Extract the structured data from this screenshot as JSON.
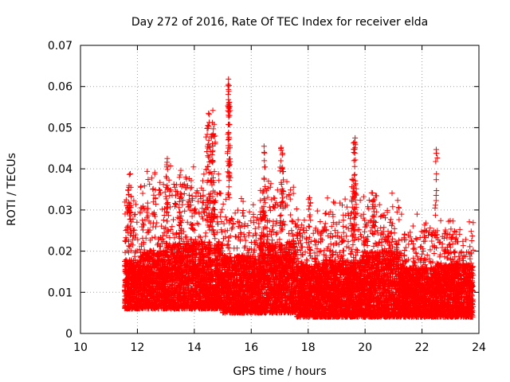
{
  "chart_data": {
    "type": "scatter",
    "title": "Day 272 of 2016, Rate Of TEC Index for receiver elda",
    "xlabel": "GPS time / hours",
    "ylabel": "ROTI / TECUs",
    "xlim": [
      10,
      24
    ],
    "ylim": [
      0,
      0.07
    ],
    "xticks": [
      "10",
      "12",
      "14",
      "16",
      "18",
      "20",
      "22",
      "24"
    ],
    "yticks": [
      "0",
      "0.01",
      "0.02",
      "0.03",
      "0.04",
      "0.05",
      "0.06",
      "0.07"
    ],
    "grid": true,
    "marker": "+",
    "color": "#ff0000",
    "x_data_range": [
      11.55,
      23.8
    ],
    "note_points": "Dense cloud of thousands of '+' markers; baseline mostly 0.006-0.02 TECU with spikes.",
    "series": [
      {
        "name": "ROTI",
        "outliers": [
          {
            "x": 15.2,
            "y": 0.0618
          },
          {
            "x": 15.22,
            "y": 0.0602
          },
          {
            "x": 15.2,
            "y": 0.0568
          },
          {
            "x": 15.23,
            "y": 0.0562
          },
          {
            "x": 14.65,
            "y": 0.0542
          },
          {
            "x": 14.5,
            "y": 0.0535
          },
          {
            "x": 14.45,
            "y": 0.0498
          },
          {
            "x": 14.7,
            "y": 0.0508
          },
          {
            "x": 14.6,
            "y": 0.0478
          },
          {
            "x": 14.55,
            "y": 0.0455
          },
          {
            "x": 19.65,
            "y": 0.0475
          },
          {
            "x": 19.63,
            "y": 0.0465
          },
          {
            "x": 19.6,
            "y": 0.0448
          },
          {
            "x": 22.5,
            "y": 0.0447
          },
          {
            "x": 16.45,
            "y": 0.0455
          },
          {
            "x": 17.05,
            "y": 0.0452
          },
          {
            "x": 17.1,
            "y": 0.0438
          },
          {
            "x": 13.05,
            "y": 0.0425
          },
          {
            "x": 11.75,
            "y": 0.0388
          },
          {
            "x": 13.5,
            "y": 0.0385
          },
          {
            "x": 19.55,
            "y": 0.0375
          },
          {
            "x": 13.9,
            "y": 0.0355
          },
          {
            "x": 11.7,
            "y": 0.0355
          },
          {
            "x": 18.05,
            "y": 0.033
          },
          {
            "x": 20.3,
            "y": 0.0325
          }
        ],
        "clusters": [
          {
            "x_start": 11.55,
            "x_end": 12.1,
            "base_low": 0.006,
            "base_high": 0.018,
            "peak": 0.032
          },
          {
            "x_start": 12.1,
            "x_end": 13.0,
            "base_low": 0.006,
            "base_high": 0.02,
            "peak": 0.036
          },
          {
            "x_start": 13.0,
            "x_end": 14.0,
            "base_low": 0.006,
            "base_high": 0.022,
            "peak": 0.038
          },
          {
            "x_start": 14.0,
            "x_end": 15.0,
            "base_low": 0.006,
            "base_high": 0.022,
            "peak": 0.035
          },
          {
            "x_start": 15.0,
            "x_end": 16.3,
            "base_low": 0.005,
            "base_high": 0.019,
            "peak": 0.03
          },
          {
            "x_start": 16.3,
            "x_end": 17.6,
            "base_low": 0.005,
            "base_high": 0.022,
            "peak": 0.034
          },
          {
            "x_start": 17.6,
            "x_end": 18.6,
            "base_low": 0.004,
            "base_high": 0.017,
            "peak": 0.026
          },
          {
            "x_start": 18.6,
            "x_end": 19.9,
            "base_low": 0.004,
            "base_high": 0.018,
            "peak": 0.03
          },
          {
            "x_start": 19.9,
            "x_end": 21.2,
            "base_low": 0.004,
            "base_high": 0.02,
            "peak": 0.031
          },
          {
            "x_start": 21.2,
            "x_end": 22.5,
            "base_low": 0.004,
            "base_high": 0.016,
            "peak": 0.025
          },
          {
            "x_start": 22.5,
            "x_end": 23.8,
            "base_low": 0.004,
            "base_high": 0.017,
            "peak": 0.025
          }
        ]
      }
    ]
  }
}
